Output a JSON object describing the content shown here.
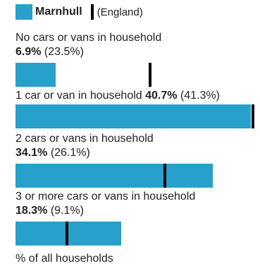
{
  "legend": {
    "area": "Marnhull",
    "comparison": "(England)",
    "area_color": "#27a0cc",
    "marker_color": "#000000"
  },
  "chart_data": {
    "type": "bar",
    "orientation": "horizontal",
    "unit": "%",
    "categories": [
      "No cars or vans in household",
      "1 car or van in household",
      "2 cars or vans in household",
      "3 or more cars or vans in household"
    ],
    "series": [
      {
        "name": "Marnhull",
        "values": [
          6.9,
          40.7,
          34.1,
          18.3
        ]
      },
      {
        "name": "England",
        "values": [
          23.5,
          41.3,
          26.1,
          9.1
        ]
      }
    ],
    "value_labels": [
      "6.9%",
      "40.7%",
      "34.1%",
      "18.3%"
    ],
    "comparison_labels": [
      "(23.5%)",
      "(41.3%)",
      "(26.1%)",
      "(9.1%)"
    ],
    "xlabel": "% of all households",
    "xlim": [
      0,
      41.3
    ],
    "grid": false,
    "legend_position": "top-left"
  }
}
